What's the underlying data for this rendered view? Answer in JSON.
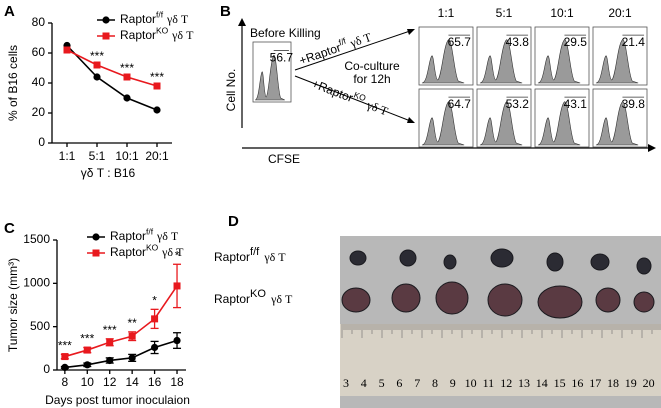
{
  "chart_data": [
    {
      "type": "line",
      "panel": "A",
      "ylabel": "% of B16 cells",
      "xlabel": "γδ T : B16",
      "categories": [
        "1:1",
        "5:1",
        "10:1",
        "20:1"
      ],
      "ylim": [
        0,
        80
      ],
      "yticks": [
        0,
        20,
        40,
        60,
        80
      ],
      "legend": "upper right",
      "significance": [
        null,
        "***",
        "***",
        "***"
      ],
      "series": [
        {
          "name": [
            "Raptor",
            "f/f",
            "γδ T"
          ],
          "color": "#000000",
          "marker": "circle",
          "values": [
            65,
            44,
            30,
            22
          ]
        },
        {
          "name": [
            "Raptor",
            "KO",
            "γδ T"
          ],
          "color": "#e8191e",
          "marker": "square",
          "values": [
            62,
            52,
            44,
            38
          ]
        }
      ]
    },
    {
      "type": "line",
      "panel": "C",
      "ylabel": "Tumor size (mm³)",
      "xlabel": "Days post tumor inoculaion",
      "x": [
        8,
        10,
        12,
        14,
        16,
        18
      ],
      "xlim": [
        7.3,
        18.8
      ],
      "xticks": [
        8,
        10,
        12,
        14,
        16,
        18
      ],
      "ylim": [
        0,
        1500
      ],
      "yticks": [
        0,
        500,
        1000,
        1500
      ],
      "legend": "upper left",
      "significance": [
        "***",
        "***",
        "***",
        "**",
        "*",
        "*"
      ],
      "series": [
        {
          "name": [
            "Raptor",
            "f/f",
            "γδ T"
          ],
          "color": "#000000",
          "marker": "circle",
          "values": [
            30,
            60,
            110,
            140,
            260,
            340
          ],
          "errors": [
            10,
            20,
            30,
            40,
            70,
            90
          ]
        },
        {
          "name": [
            "Raptor",
            "KO",
            "γδ T"
          ],
          "color": "#e8191e",
          "marker": "square",
          "values": [
            155,
            230,
            320,
            390,
            590,
            970
          ],
          "errors": [
            25,
            30,
            40,
            50,
            110,
            250
          ]
        }
      ]
    }
  ],
  "panel_b": {
    "panel": "B",
    "y_label": "Cell No.",
    "x_label": "CFSE",
    "before": {
      "title": "Before Killing",
      "value": 56.7
    },
    "arms": [
      [
        "+Raptor",
        "f/f",
        "γδ T"
      ],
      [
        "+Raptor",
        "KO",
        "γδ T"
      ]
    ],
    "note": [
      "Co-culture",
      "for 12h"
    ],
    "ratios": [
      "1:1",
      "5:1",
      "10:1",
      "20:1"
    ],
    "rows": [
      [
        65.7,
        43.8,
        29.5,
        21.4
      ],
      [
        64.7,
        53.2,
        43.1,
        39.8
      ]
    ]
  },
  "panel_d": {
    "panel": "D",
    "labels": [
      [
        "Raptor",
        "f/f",
        "γδ T"
      ],
      [
        "Raptor",
        "KO",
        "γδ T"
      ]
    ],
    "ruler": [
      3,
      4,
      5,
      6,
      7,
      8,
      9,
      10,
      11,
      12,
      13,
      14,
      15,
      16,
      17,
      18,
      19,
      20
    ]
  }
}
